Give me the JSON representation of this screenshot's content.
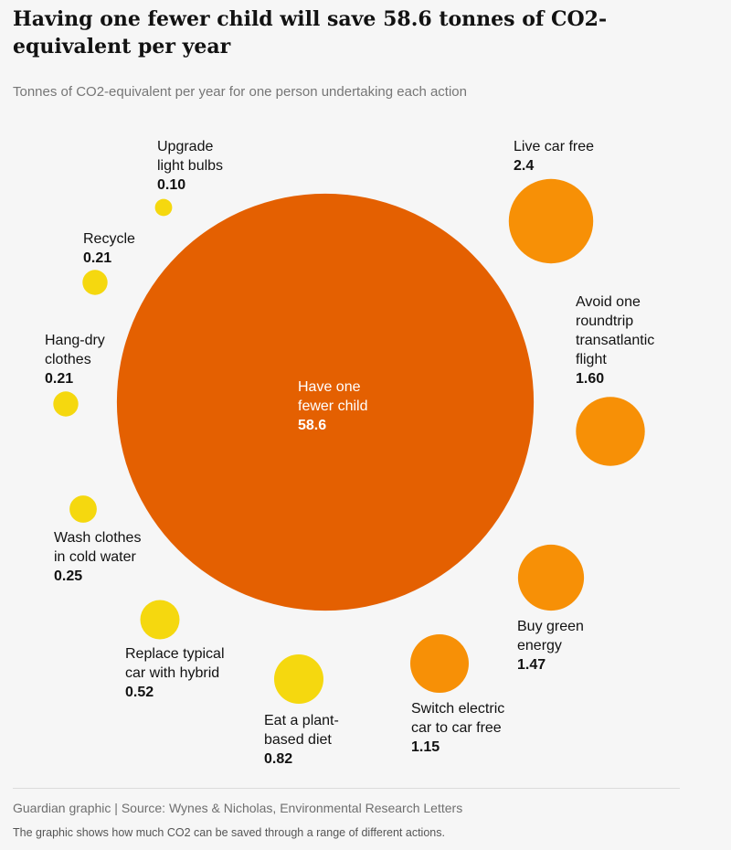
{
  "header": {
    "title": "Having one fewer child will save 58.6 tonnes of CO2-equivalent per year",
    "subtitle": "Tonnes of CO2-equivalent per year for one person undertaking each action"
  },
  "footer": {
    "source": "Guardian graphic | Source: Wynes & Nicholas, Environmental Research Letters",
    "note": "The graphic shows how much CO2 can be saved through a range of different actions."
  },
  "colors": {
    "big": "#e46001",
    "orange": "#f79006",
    "yellow": "#f5d80f",
    "text": "#121212",
    "text_on_big": "#ffffff"
  },
  "chart_data": {
    "type": "bubble",
    "title": "Having one fewer child will save 58.6 tonnes of CO2-equivalent per year",
    "subtitle": "Tonnes of CO2-equivalent per year for one person undertaking each action",
    "items": [
      {
        "label_lines": [
          "Have one",
          "fewer child"
        ],
        "value": 58.6,
        "value_label": "58.6",
        "tier": "big"
      },
      {
        "label_lines": [
          "Live car free"
        ],
        "value": 2.4,
        "value_label": "2.4",
        "tier": "orange"
      },
      {
        "label_lines": [
          "Avoid one",
          "roundtrip",
          "transatlantic",
          "flight"
        ],
        "value": 1.6,
        "value_label": "1.60",
        "tier": "orange"
      },
      {
        "label_lines": [
          "Buy green",
          "energy"
        ],
        "value": 1.47,
        "value_label": "1.47",
        "tier": "orange"
      },
      {
        "label_lines": [
          "Switch electric",
          "car to car free"
        ],
        "value": 1.15,
        "value_label": "1.15",
        "tier": "orange"
      },
      {
        "label_lines": [
          "Eat a plant-",
          "based diet"
        ],
        "value": 0.82,
        "value_label": "0.82",
        "tier": "yellow"
      },
      {
        "label_lines": [
          "Replace typical",
          "car with hybrid"
        ],
        "value": 0.52,
        "value_label": "0.52",
        "tier": "yellow"
      },
      {
        "label_lines": [
          "Wash clothes",
          "in cold water"
        ],
        "value": 0.25,
        "value_label": "0.25",
        "tier": "yellow"
      },
      {
        "label_lines": [
          "Hang-dry",
          "clothes"
        ],
        "value": 0.21,
        "value_label": "0.21",
        "tier": "yellow"
      },
      {
        "label_lines": [
          "Recycle"
        ],
        "value": 0.21,
        "value_label": "0.21",
        "tier": "yellow"
      },
      {
        "label_lines": [
          "Upgrade",
          "light bulbs"
        ],
        "value": 0.1,
        "value_label": "0.10",
        "tier": "yellow"
      }
    ]
  }
}
